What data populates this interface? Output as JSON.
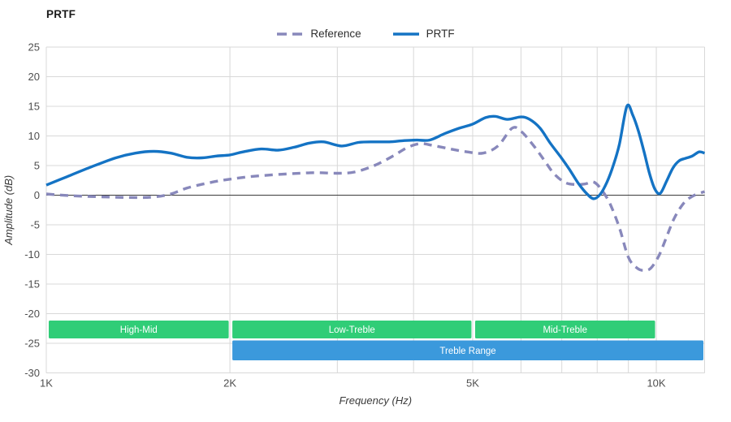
{
  "title": "PRTF",
  "legend": [
    {
      "label": "Reference",
      "color": "#8888bb",
      "dashed": true
    },
    {
      "label": "PRTF",
      "color": "#1473c4",
      "dashed": false
    }
  ],
  "colors": {
    "grid": "#d8d8d8",
    "zero_line": "#3c3c3c",
    "tick_text": "#4f4f4f",
    "axis_title_text": "#3a3a3a",
    "band_green": "#30cd77",
    "band_blue": "#3b99dc",
    "band_text": "#ffffff",
    "prtf_line": "#1473c4",
    "reference_line": "#8888bb"
  },
  "chart_data": {
    "type": "line",
    "title": "PRTF",
    "xlabel": "Frequency (Hz)",
    "ylabel": "Amplitude (dB)",
    "x_scale": "log",
    "x_range_hz": [
      1000,
      12000
    ],
    "ylim": [
      -30,
      25
    ],
    "grid": true,
    "legend_position": "top-center",
    "y_ticks": [
      25,
      20,
      15,
      10,
      5,
      0,
      -5,
      -10,
      -15,
      -20,
      -25,
      -30
    ],
    "x_gridlines_hz": [
      2000,
      3000,
      4000,
      5000,
      6000,
      7000,
      8000,
      9000,
      10000
    ],
    "x_tick_labels": [
      {
        "hz": 1000,
        "label": "1K"
      },
      {
        "hz": 2000,
        "label": "2K"
      },
      {
        "hz": 5000,
        "label": "5K"
      },
      {
        "hz": 10000,
        "label": "10K"
      }
    ],
    "series": [
      {
        "name": "Reference",
        "color": "#8888bb",
        "dashed": true,
        "points": [
          [
            1000,
            0.2
          ],
          [
            1100,
            -0.1
          ],
          [
            1250,
            -0.3
          ],
          [
            1400,
            -0.4
          ],
          [
            1500,
            -0.3
          ],
          [
            1600,
            0.2
          ],
          [
            1700,
            1.2
          ],
          [
            1850,
            2.1
          ],
          [
            2000,
            2.7
          ],
          [
            2200,
            3.2
          ],
          [
            2500,
            3.6
          ],
          [
            2750,
            3.8
          ],
          [
            3000,
            3.7
          ],
          [
            3200,
            3.9
          ],
          [
            3450,
            5.0
          ],
          [
            3700,
            6.6
          ],
          [
            3900,
            8.0
          ],
          [
            4100,
            8.7
          ],
          [
            4300,
            8.4
          ],
          [
            4600,
            7.8
          ],
          [
            4900,
            7.3
          ],
          [
            5200,
            7.1
          ],
          [
            5500,
            8.3
          ],
          [
            5800,
            11.3
          ],
          [
            6000,
            10.8
          ],
          [
            6300,
            8.3
          ],
          [
            6550,
            5.9
          ],
          [
            6800,
            3.6
          ],
          [
            7100,
            2.1
          ],
          [
            7400,
            1.8
          ],
          [
            7650,
            1.9
          ],
          [
            7900,
            2.2
          ],
          [
            8150,
            0.8
          ],
          [
            8400,
            -1.5
          ],
          [
            8700,
            -5.5
          ],
          [
            9000,
            -10.5
          ],
          [
            9300,
            -12.3
          ],
          [
            9550,
            -12.7
          ],
          [
            9800,
            -12.3
          ],
          [
            10100,
            -10.2
          ],
          [
            10400,
            -7.0
          ],
          [
            10700,
            -3.9
          ],
          [
            11100,
            -1.3
          ],
          [
            11500,
            -0.1
          ],
          [
            12000,
            0.6
          ]
        ]
      },
      {
        "name": "PRTF",
        "color": "#1473c4",
        "dashed": false,
        "points": [
          [
            1000,
            1.7
          ],
          [
            1080,
            3.1
          ],
          [
            1180,
            4.7
          ],
          [
            1300,
            6.3
          ],
          [
            1400,
            7.1
          ],
          [
            1500,
            7.4
          ],
          [
            1600,
            7.1
          ],
          [
            1700,
            6.4
          ],
          [
            1800,
            6.3
          ],
          [
            1900,
            6.6
          ],
          [
            2000,
            6.8
          ],
          [
            2100,
            7.3
          ],
          [
            2250,
            7.8
          ],
          [
            2400,
            7.6
          ],
          [
            2550,
            8.1
          ],
          [
            2700,
            8.8
          ],
          [
            2850,
            9.0
          ],
          [
            3050,
            8.3
          ],
          [
            3250,
            8.9
          ],
          [
            3450,
            9.0
          ],
          [
            3650,
            9.0
          ],
          [
            3850,
            9.2
          ],
          [
            4050,
            9.3
          ],
          [
            4250,
            9.3
          ],
          [
            4500,
            10.4
          ],
          [
            4750,
            11.3
          ],
          [
            5000,
            12.0
          ],
          [
            5250,
            13.1
          ],
          [
            5450,
            13.3
          ],
          [
            5700,
            12.8
          ],
          [
            6000,
            13.2
          ],
          [
            6200,
            12.8
          ],
          [
            6450,
            11.3
          ],
          [
            6700,
            8.8
          ],
          [
            7000,
            6.2
          ],
          [
            7200,
            4.4
          ],
          [
            7450,
            2.0
          ],
          [
            7700,
            0.2
          ],
          [
            7900,
            -0.6
          ],
          [
            8100,
            0.2
          ],
          [
            8300,
            2.2
          ],
          [
            8500,
            5.0
          ],
          [
            8700,
            8.6
          ],
          [
            8950,
            15.0
          ],
          [
            9150,
            13.5
          ],
          [
            9350,
            10.8
          ],
          [
            9550,
            7.3
          ],
          [
            9750,
            3.6
          ],
          [
            9950,
            1.0
          ],
          [
            10150,
            0.3
          ],
          [
            10400,
            2.4
          ],
          [
            10650,
            4.6
          ],
          [
            10900,
            5.8
          ],
          [
            11150,
            6.2
          ],
          [
            11450,
            6.6
          ],
          [
            11750,
            7.3
          ],
          [
            12000,
            7.1
          ]
        ]
      }
    ],
    "bands": [
      {
        "label": "High-Mid",
        "row": "green",
        "color": "#30cd77",
        "from_hz": 1000,
        "to_hz": 2000
      },
      {
        "label": "Low-Treble",
        "row": "green",
        "color": "#30cd77",
        "from_hz": 2000,
        "to_hz": 5000
      },
      {
        "label": "Mid-Treble",
        "row": "green",
        "color": "#30cd77",
        "from_hz": 5000,
        "to_hz": 10000
      },
      {
        "label": "Treble Range",
        "row": "blue",
        "color": "#3b99dc",
        "from_hz": 2000,
        "to_hz": 12000
      }
    ]
  }
}
